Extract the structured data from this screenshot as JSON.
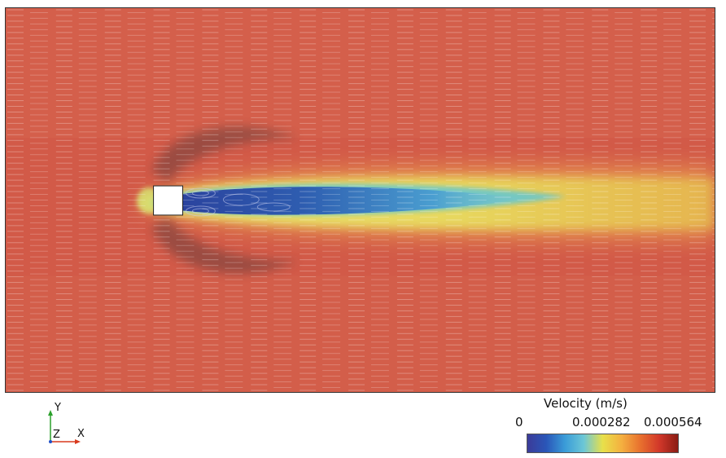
{
  "axes": {
    "y_label": "Y",
    "z_label": "Z",
    "x_label": "X",
    "colors": {
      "x": "#d83a1e",
      "y": "#2aa02a",
      "z": "#2050c8"
    }
  },
  "colorbar": {
    "title": "Velocity (m/s)",
    "tick_min": "0",
    "tick_mid": "0.000282",
    "tick_max": "0.000564",
    "colormap": [
      "#3b3b99",
      "#2a56b8",
      "#3a9cd8",
      "#6cc7d6",
      "#e8e04a",
      "#f4b040",
      "#e8702e",
      "#d2382a",
      "#8a1c14"
    ]
  },
  "scene": {
    "obstacle": "square-obstacle",
    "field": "velocity-streamlines"
  }
}
